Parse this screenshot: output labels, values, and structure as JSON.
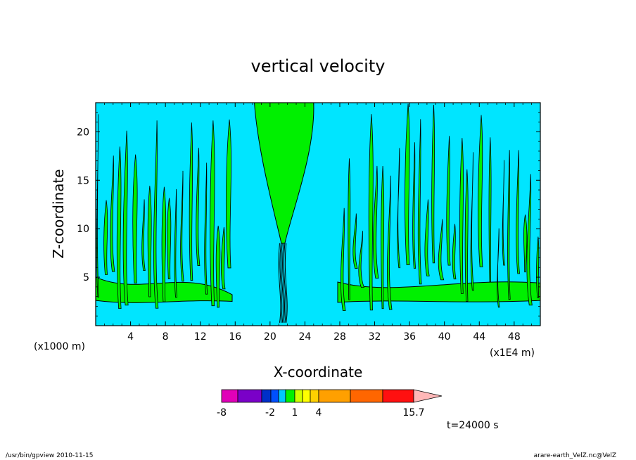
{
  "chart_data": {
    "type": "heatmap",
    "title": "vertical velocity",
    "xlabel": "X-coordinate",
    "ylabel": "Z-coordinate",
    "x_unit_left": "(x1000 m)",
    "x_unit_right": "(x1E4 m)",
    "xlim": [
      0,
      51
    ],
    "ylim": [
      0,
      23
    ],
    "xticks": [
      "4",
      "8",
      "12",
      "16",
      "20",
      "24",
      "28",
      "32",
      "36",
      "40",
      "44",
      "48"
    ],
    "xtick_values": [
      4,
      8,
      12,
      16,
      20,
      24,
      28,
      32,
      36,
      40,
      44,
      48
    ],
    "yticks": [
      "5",
      "10",
      "15",
      "20"
    ],
    "ytick_values": [
      5,
      10,
      15,
      20
    ],
    "background_level_color": "#00e5ff",
    "updraft_level_color": "#00f000",
    "contour_line_color": "#000000",
    "colorbar": {
      "colors": [
        "#e000b8",
        "#7a00c8",
        "#0030c8",
        "#0050ff",
        "#00c8ff",
        "#00f000",
        "#d0ff00",
        "#ffff00",
        "#ffd000",
        "#ffa000",
        "#ff6600",
        "#ff1010",
        "#ff7878",
        "#ffb8b8"
      ],
      "labels": [
        {
          "text": "-8",
          "value": -8
        },
        {
          "text": "-2",
          "value": -2
        },
        {
          "text": "1",
          "value": 1
        },
        {
          "text": "4",
          "value": 4
        },
        {
          "text": "15.7",
          "value": 15.7
        }
      ]
    },
    "time_label": "t=24000 s"
  },
  "footer": {
    "left": "/usr/bin/gpview   2010-11-15",
    "right": "arare-earth_VelZ.nc@VelZ"
  }
}
